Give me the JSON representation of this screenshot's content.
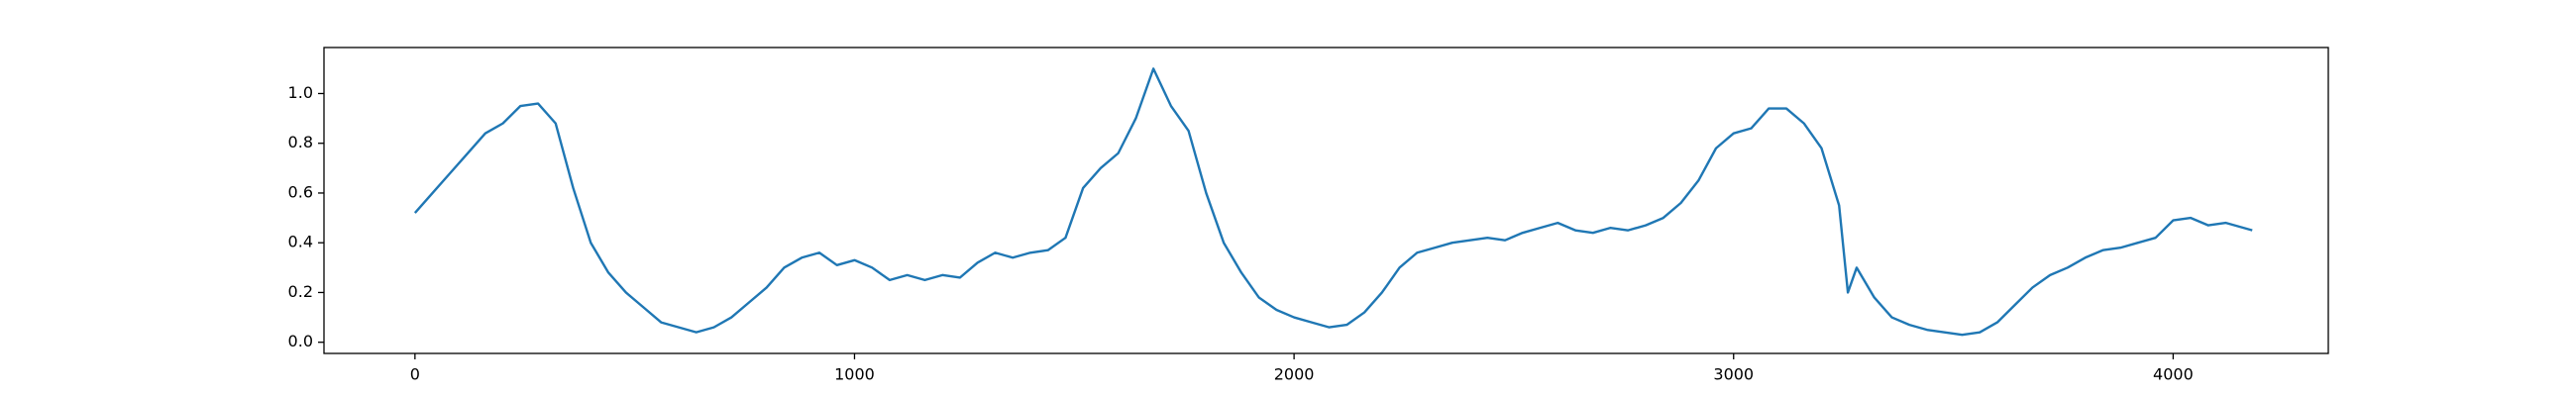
{
  "chart_data": {
    "type": "line",
    "color": "#1f77b4",
    "x": [
      0,
      40,
      80,
      120,
      160,
      200,
      240,
      280,
      320,
      360,
      400,
      440,
      480,
      520,
      560,
      600,
      640,
      680,
      720,
      760,
      800,
      840,
      880,
      920,
      960,
      1000,
      1040,
      1080,
      1120,
      1160,
      1200,
      1240,
      1280,
      1320,
      1360,
      1400,
      1440,
      1480,
      1520,
      1560,
      1600,
      1640,
      1680,
      1720,
      1760,
      1800,
      1840,
      1880,
      1920,
      1960,
      2000,
      2040,
      2080,
      2120,
      2160,
      2200,
      2240,
      2280,
      2320,
      2360,
      2400,
      2440,
      2480,
      2520,
      2560,
      2600,
      2640,
      2680,
      2720,
      2760,
      2800,
      2840,
      2880,
      2920,
      2960,
      3000,
      3040,
      3080,
      3120,
      3160,
      3200,
      3240,
      3260,
      3280,
      3320,
      3360,
      3400,
      3440,
      3480,
      3520,
      3560,
      3600,
      3640,
      3680,
      3720,
      3760,
      3800,
      3840,
      3880,
      3920,
      3960,
      4000,
      4040,
      4080,
      4120,
      4160,
      4180
    ],
    "values": [
      0.52,
      0.6,
      0.68,
      0.76,
      0.84,
      0.88,
      0.95,
      0.96,
      0.88,
      0.62,
      0.4,
      0.28,
      0.2,
      0.14,
      0.08,
      0.06,
      0.04,
      0.06,
      0.1,
      0.16,
      0.22,
      0.3,
      0.34,
      0.36,
      0.31,
      0.33,
      0.3,
      0.25,
      0.27,
      0.25,
      0.27,
      0.26,
      0.32,
      0.36,
      0.34,
      0.36,
      0.37,
      0.42,
      0.62,
      0.7,
      0.76,
      0.9,
      1.1,
      0.95,
      0.85,
      0.6,
      0.4,
      0.28,
      0.18,
      0.13,
      0.1,
      0.08,
      0.06,
      0.07,
      0.12,
      0.2,
      0.3,
      0.36,
      0.38,
      0.4,
      0.41,
      0.42,
      0.41,
      0.44,
      0.46,
      0.48,
      0.45,
      0.44,
      0.46,
      0.45,
      0.47,
      0.5,
      0.56,
      0.65,
      0.78,
      0.84,
      0.86,
      0.94,
      0.94,
      0.88,
      0.78,
      0.55,
      0.2,
      0.3,
      0.18,
      0.1,
      0.07,
      0.05,
      0.04,
      0.03,
      0.04,
      0.08,
      0.15,
      0.22,
      0.27,
      0.3,
      0.34,
      0.37,
      0.38,
      0.4,
      0.42,
      0.49,
      0.5,
      0.47,
      0.48,
      0.46,
      0.45
    ],
    "xlim": [
      -207,
      4353
    ],
    "ylim": [
      -0.045,
      1.185
    ],
    "xticks": [
      0,
      1000,
      2000,
      3000,
      4000
    ],
    "yticks": [
      {
        "value": 0,
        "label": "0.0"
      },
      0.2,
      0.4,
      0.6,
      0.8,
      {
        "value": 1,
        "label": "1.0"
      }
    ]
  }
}
